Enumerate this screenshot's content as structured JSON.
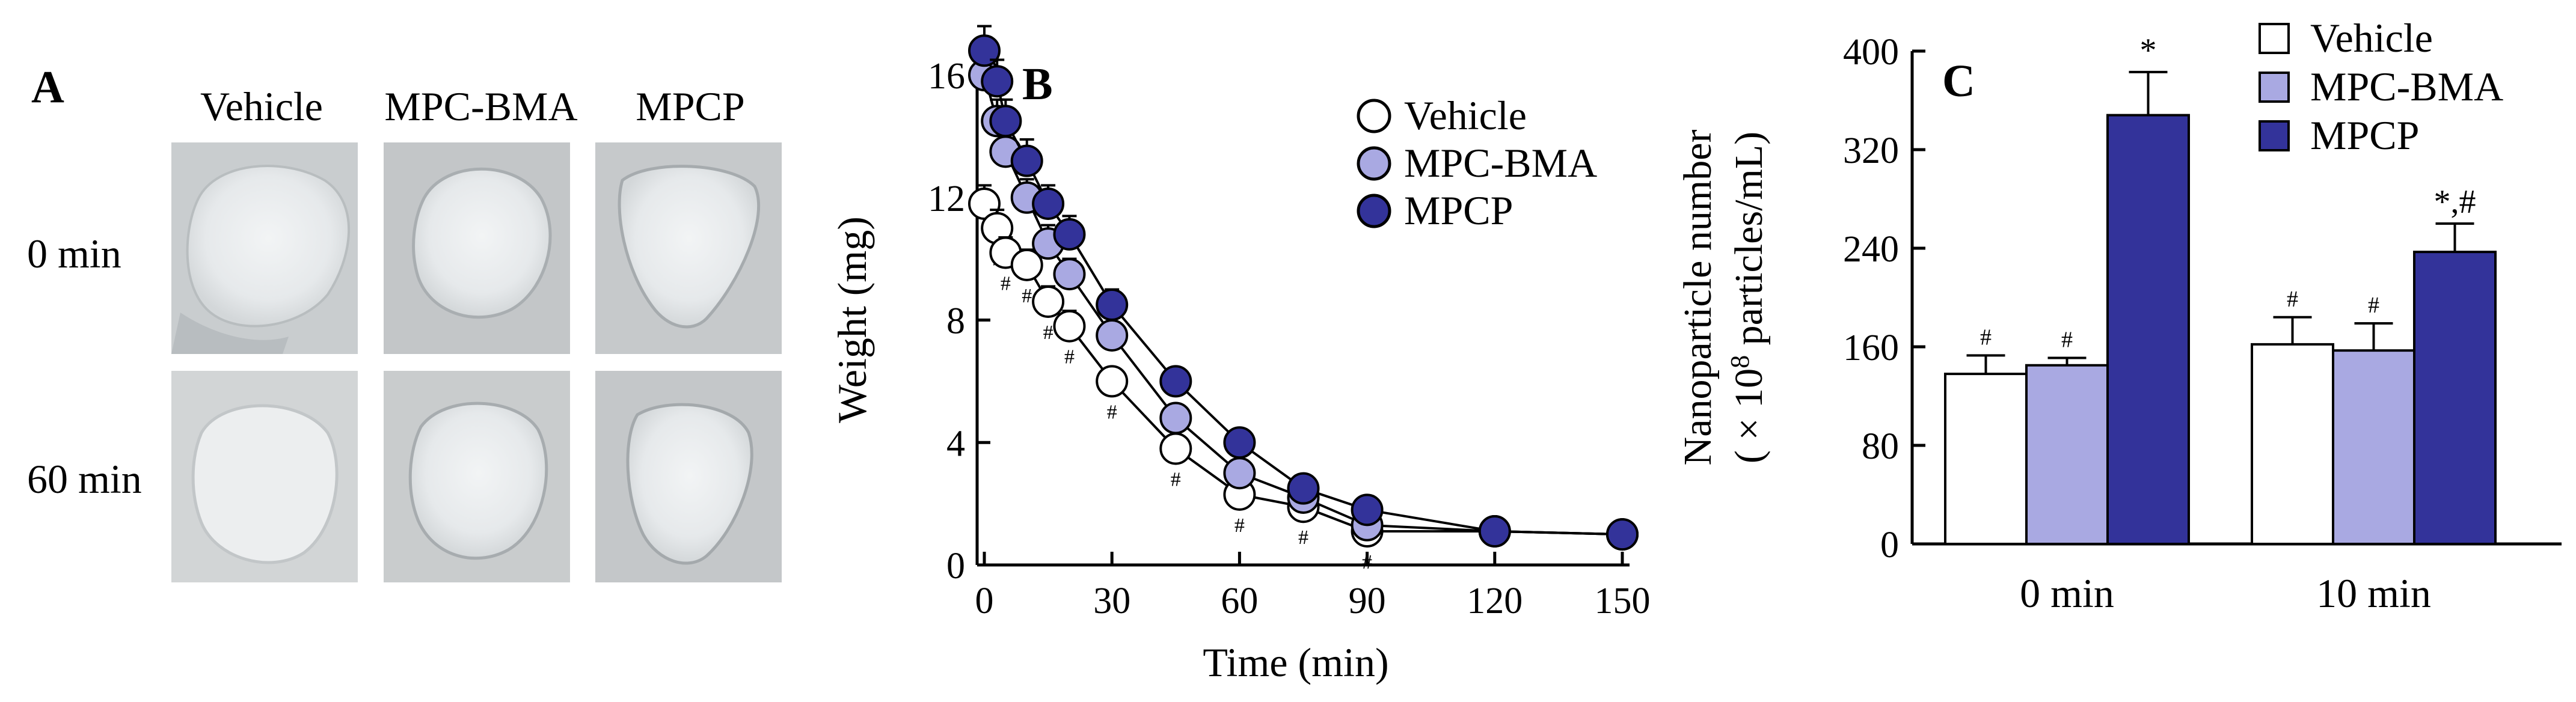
{
  "panel_a": {
    "letter": "A",
    "columns": [
      "Vehicle",
      "MPC-BMA",
      "MPCP"
    ],
    "rows": [
      "0 min",
      "60 min"
    ]
  },
  "colors": {
    "vehicle": "#ffffff",
    "mpc_bma": "#a9a9e2",
    "mpcp": "#33339a",
    "axis": "#000000",
    "photo_bg": "#c8cbcc"
  },
  "chart_data": [
    {
      "panel": "B",
      "type": "line",
      "xlabel": "Time (min)",
      "ylabel": "Weight (mg)",
      "x_ticks": [
        0,
        30,
        60,
        90,
        120,
        150
      ],
      "y_ticks": [
        0,
        4,
        8,
        12,
        16
      ],
      "xlim": [
        0,
        150
      ],
      "ylim": [
        0,
        16
      ],
      "legend": [
        "Vehicle",
        "MPC-BMA",
        "MPCP"
      ],
      "legend_position": "top-right",
      "sig_mark": "#",
      "series": [
        {
          "name": "Vehicle",
          "color_key": "vehicle",
          "x": [
            0,
            3,
            5,
            10,
            15,
            20,
            30,
            45,
            60,
            75,
            90,
            120,
            150
          ],
          "y": [
            11.8,
            11.0,
            10.2,
            9.8,
            8.6,
            7.8,
            6.0,
            3.8,
            2.3,
            1.9,
            1.1,
            1.1,
            1.0
          ],
          "err": [
            0.6,
            0.6,
            0.5,
            0.5,
            0.5,
            0.5,
            0.4,
            0.3,
            0.3,
            0.2,
            0.2,
            0.1,
            0.1
          ]
        },
        {
          "name": "MPC-BMA",
          "color_key": "mpc_bma",
          "x": [
            0,
            3,
            5,
            10,
            15,
            20,
            30,
            45,
            60,
            75,
            90,
            120,
            150
          ],
          "y": [
            16.0,
            14.5,
            13.5,
            12.0,
            10.5,
            9.5,
            7.5,
            4.8,
            3.0,
            2.2,
            1.3,
            1.1,
            1.0
          ],
          "err": [
            0.8,
            0.7,
            0.7,
            0.6,
            0.6,
            0.5,
            0.4,
            0.4,
            0.3,
            0.2,
            0.2,
            0.1,
            0.1
          ]
        },
        {
          "name": "MPCP",
          "color_key": "mpcp",
          "x": [
            0,
            3,
            5,
            10,
            15,
            20,
            30,
            45,
            60,
            75,
            90,
            120,
            150
          ],
          "y": [
            16.8,
            15.8,
            14.5,
            13.2,
            11.8,
            10.8,
            8.5,
            6.0,
            4.0,
            2.5,
            1.8,
            1.1,
            1.0
          ],
          "err": [
            0.8,
            0.7,
            0.7,
            0.7,
            0.6,
            0.6,
            0.5,
            0.4,
            0.3,
            0.3,
            0.2,
            0.1,
            0.1
          ]
        }
      ]
    },
    {
      "panel": "C",
      "type": "bar",
      "ylabel_line1": "Nanoparticle  number",
      "ylabel_line2": "( × 10",
      "ylabel_sup": "8",
      "ylabel_line2b": " particles/mL)",
      "categories": [
        "0 min",
        "10 min"
      ],
      "y_ticks": [
        0,
        80,
        160,
        240,
        320,
        400
      ],
      "ylim": [
        0,
        400
      ],
      "legend": [
        "Vehicle",
        "MPC-BMA",
        "MPCP"
      ],
      "legend_position": "top-right",
      "series": [
        {
          "name": "Vehicle",
          "color_key": "vehicle",
          "values": [
            138,
            162
          ],
          "err": [
            15,
            22
          ],
          "marks": [
            "#",
            "#"
          ]
        },
        {
          "name": "MPC-BMA",
          "color_key": "mpc_bma",
          "values": [
            145,
            157
          ],
          "err": [
            6,
            22
          ],
          "marks": [
            "#",
            "#"
          ]
        },
        {
          "name": "MPCP",
          "color_key": "mpcp",
          "values": [
            348,
            237
          ],
          "err": [
            35,
            23
          ],
          "marks": [
            "*",
            "*,#"
          ]
        }
      ]
    }
  ]
}
